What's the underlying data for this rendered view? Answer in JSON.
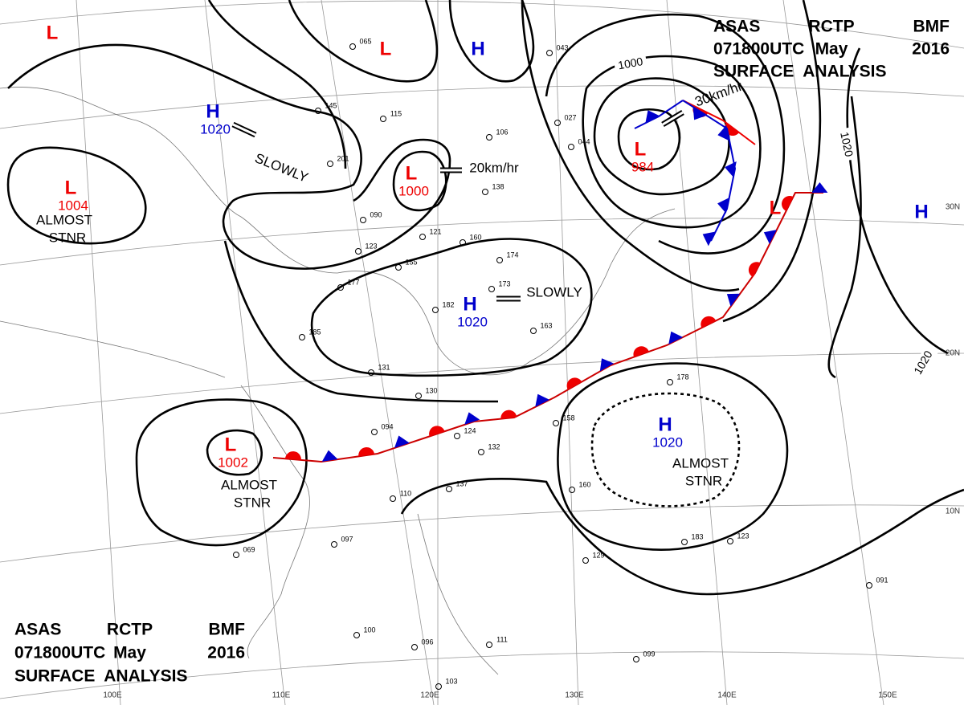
{
  "header_top": {
    "line1": [
      "ASAS",
      "RCTP",
      "BMF"
    ],
    "line2": [
      "071800UTC",
      "May",
      "2016"
    ],
    "line3": "SURFACE  ANALYSIS"
  },
  "header_bottom": {
    "line1": [
      "ASAS",
      "RCTP",
      "BMF"
    ],
    "line2": [
      "071800UTC",
      "May",
      "2016"
    ],
    "line3": "SURFACE  ANALYSIS"
  },
  "pressure_systems": [
    {
      "symbol": "L"
    },
    {
      "symbol": "L"
    },
    {
      "symbol": "H"
    },
    {
      "symbol": "H",
      "pressure": "1020"
    },
    {
      "symbol": "L",
      "pressure": "1004",
      "motion": [
        "ALMOST",
        "STNR"
      ]
    },
    {
      "symbol": "L",
      "pressure": "1000"
    },
    {
      "symbol": "L",
      "pressure": "984"
    },
    {
      "symbol": "H",
      "pressure": "1020"
    },
    {
      "symbol": "L"
    },
    {
      "symbol": "H"
    },
    {
      "symbol": "L",
      "pressure": "1002",
      "motion": [
        "ALMOST",
        "STNR"
      ]
    },
    {
      "symbol": "H",
      "pressure": "1020",
      "motion": [
        "ALMOST",
        "STNR"
      ]
    }
  ],
  "movements": [
    "SLOWLY",
    "20km/hr",
    "SLOWLY",
    "30km/hr"
  ],
  "isobar_labels": [
    "1000",
    "1020",
    "1020"
  ],
  "grid_labels": [
    "100E",
    "110E",
    "120E",
    "130E",
    "140E",
    "150E",
    "30N",
    "20N",
    "10N"
  ],
  "station_labels": [
    "065",
    "145",
    "115",
    "201",
    "106",
    "123",
    "155",
    "177",
    "185",
    "131",
    "130",
    "094",
    "124",
    "132",
    "137",
    "110",
    "097",
    "069",
    "100",
    "096",
    "111",
    "103",
    "099",
    "091",
    "123",
    "183",
    "129",
    "160",
    "158",
    "178",
    "138",
    "160",
    "174",
    "173",
    "182",
    "163",
    "043",
    "027",
    "044",
    "090",
    "121"
  ]
}
